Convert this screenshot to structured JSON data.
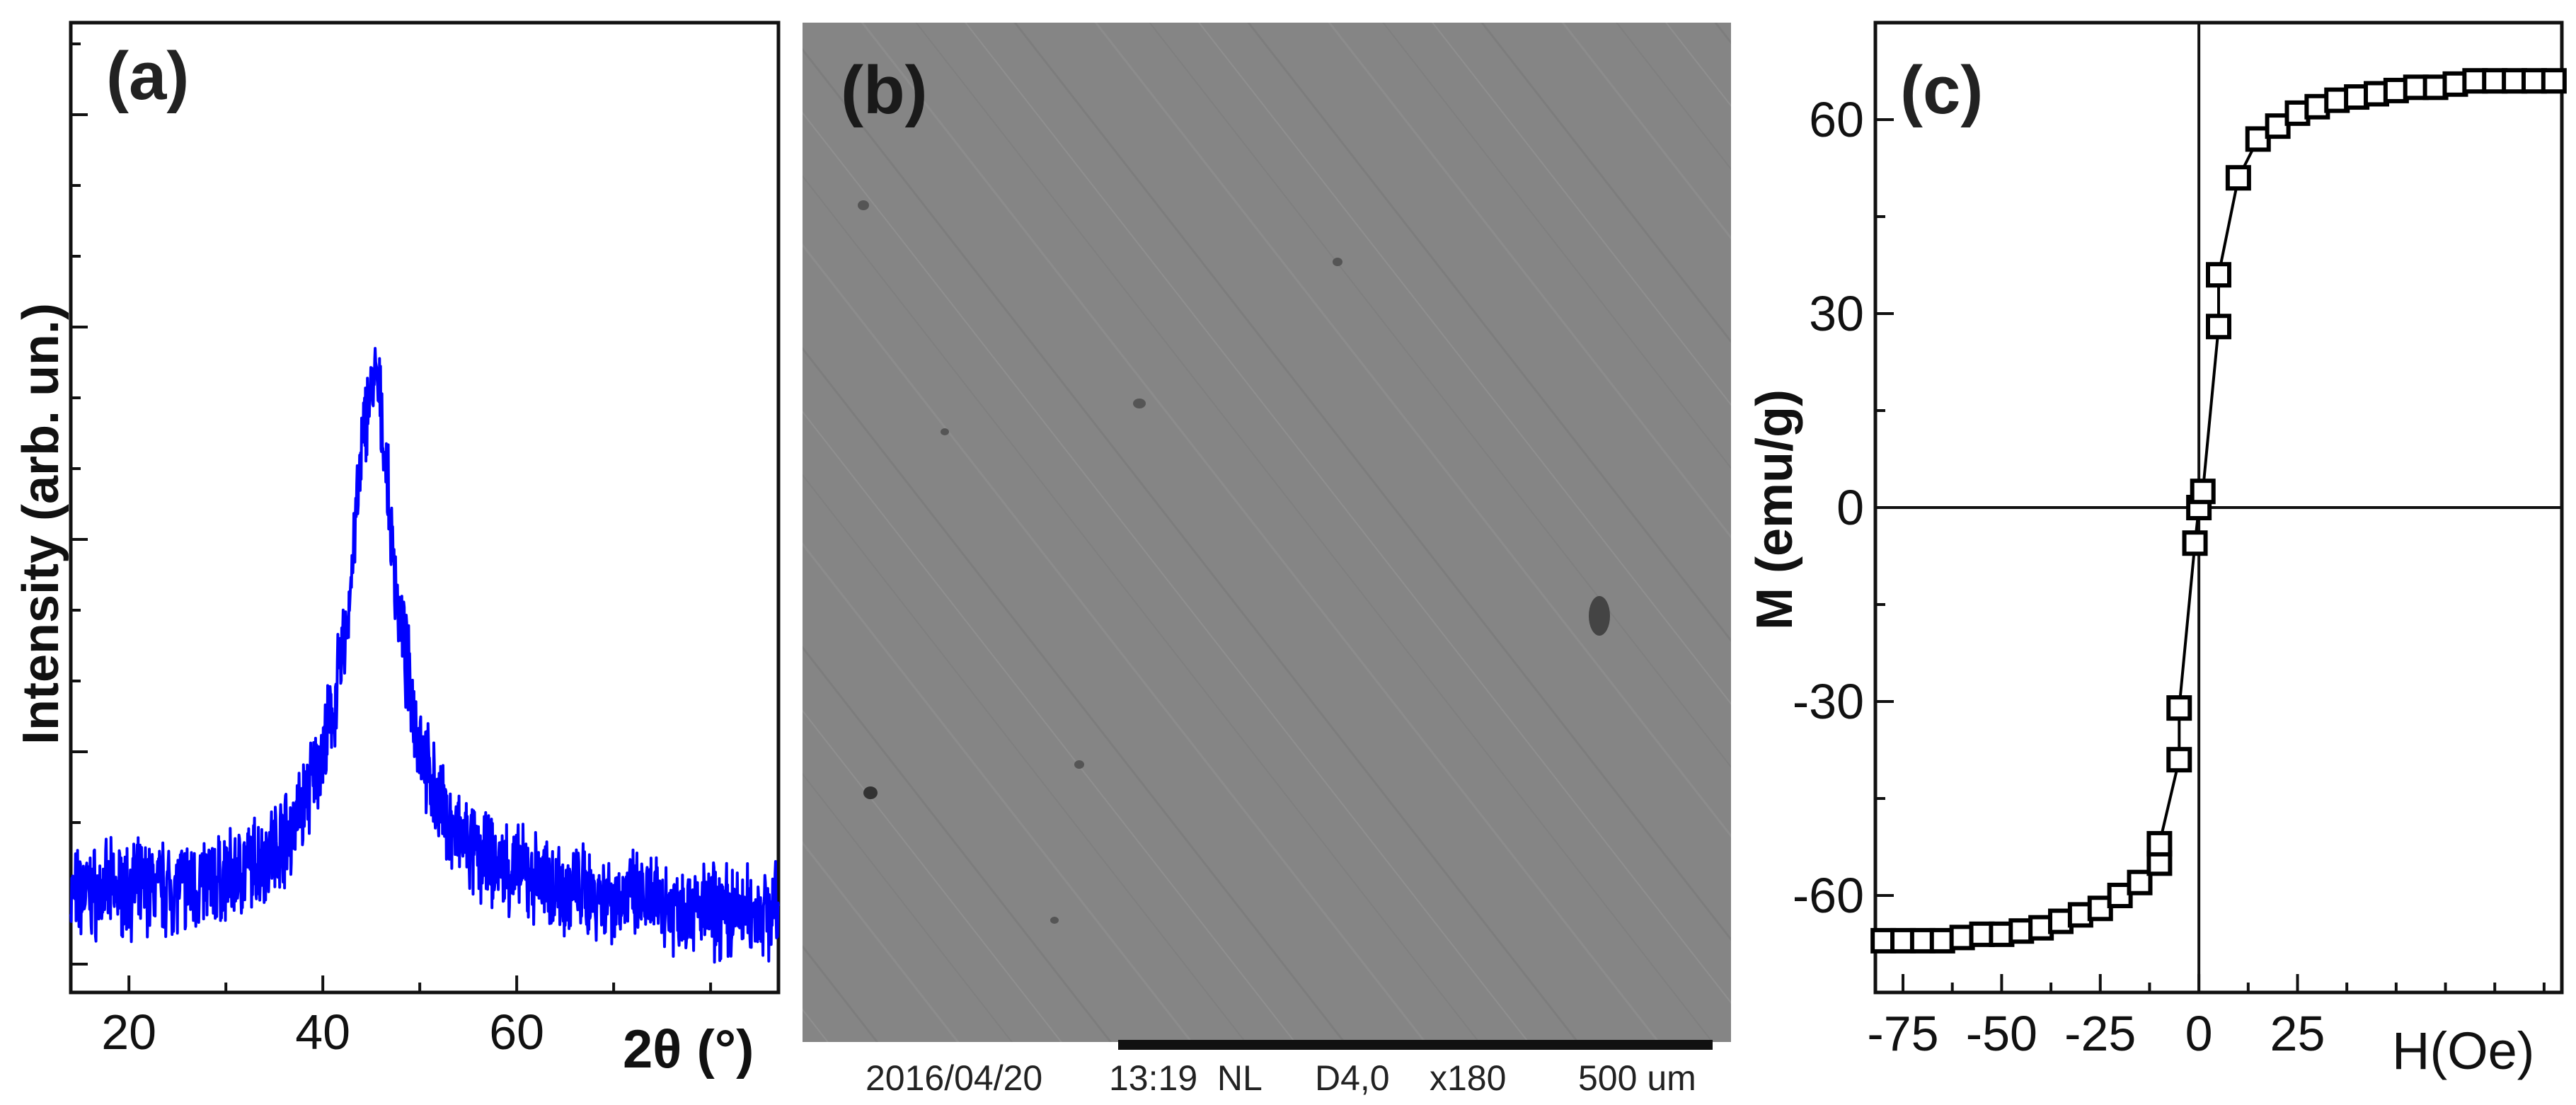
{
  "chart_data": [
    {
      "panel": "(a)",
      "type": "line",
      "ylabel": "Intensity (arb. un.)",
      "xlabel": "2θ (°)",
      "xlim": [
        14,
        87
      ],
      "x_ticks": [
        20,
        40,
        60
      ],
      "y_ticks_labeled": false,
      "series": [
        {
          "color": "#0000ff",
          "x": [
            14,
            20,
            25,
            30,
            34,
            37,
            39,
            41,
            42.5,
            43.5,
            44.5,
            45.5,
            46.3,
            47,
            48,
            49.5,
            51,
            53,
            56,
            60,
            65,
            70,
            75,
            80,
            87
          ],
          "y": [
            0.05,
            0.06,
            0.06,
            0.07,
            0.1,
            0.14,
            0.2,
            0.28,
            0.4,
            0.55,
            0.68,
            0.72,
            0.64,
            0.52,
            0.4,
            0.28,
            0.2,
            0.14,
            0.1,
            0.08,
            0.06,
            0.05,
            0.04,
            0.03,
            0.03
          ]
        }
      ]
    },
    {
      "panel": "(b)",
      "type": "image",
      "footer": {
        "date": "2016/04/20",
        "time_mode": "13:19  NL",
        "detector": "D4,0",
        "magnification": "x180",
        "scale": "500 um"
      }
    },
    {
      "panel": "(c)",
      "type": "scatter",
      "xlabel": "H(Oe)",
      "ylabel": "M (emu/g)",
      "xlim": [
        -82,
        92
      ],
      "ylim": [
        -75,
        75
      ],
      "x_ticks": [
        -75,
        -50,
        -25,
        0,
        25
      ],
      "y_ticks": [
        -60,
        -30,
        0,
        30,
        60
      ],
      "series": [
        {
          "marker": "open-square",
          "color": "#000000",
          "x": [
            -80,
            -75,
            -70,
            -65,
            -60,
            -55,
            -50,
            -45,
            -40,
            -35,
            -30,
            -25,
            -20,
            -15,
            -10,
            -10,
            -5,
            -5,
            -1,
            0,
            1,
            5,
            5,
            10,
            15,
            20,
            25,
            30,
            35,
            40,
            45,
            50,
            55,
            60,
            65,
            70,
            75,
            80,
            85,
            90
          ],
          "y": [
            -67,
            -67,
            -67,
            -67,
            -66.5,
            -66,
            -66,
            -65.5,
            -65,
            -64,
            -63,
            -62,
            -60,
            -58,
            -55,
            -52,
            -39,
            -31,
            -5.5,
            0,
            2.5,
            28,
            36,
            51,
            57,
            59,
            61,
            62,
            63,
            63.5,
            64,
            64.5,
            65,
            65,
            65.5,
            66,
            66,
            66,
            66,
            66
          ]
        }
      ]
    }
  ],
  "labels": {
    "panel_a": "(a)",
    "panel_b": "(b)",
    "panel_c": "(c)"
  }
}
